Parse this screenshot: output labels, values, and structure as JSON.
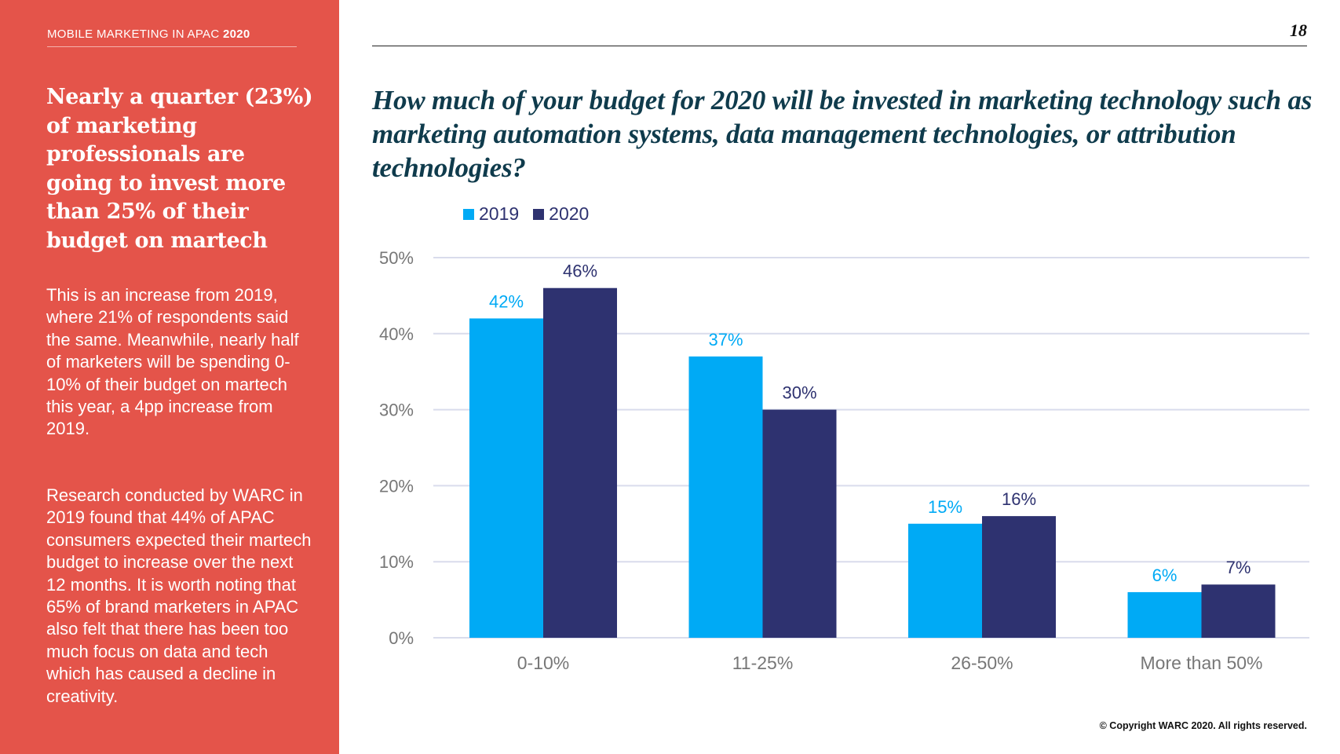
{
  "sidebar": {
    "report_label": "MOBILE MARKETING IN APAC",
    "report_year": "2020",
    "headline": "Nearly a quarter (23%) of marketing professionals are going to invest more than 25% of their budget on martech",
    "paragraph_1": "This is an increase from 2019, where 21% of respondents said the same. Meanwhile, nearly half of marketers will be spending 0-10% of their budget on martech this year, a 4pp increase from 2019.",
    "paragraph_2": "Research conducted by WARC in 2019 found that 44% of APAC consumers expected their martech budget to increase over the next 12 months. It is worth noting that 65% of brand marketers in APAC also felt that there has been too much focus on data and tech which has caused a decline in creativity."
  },
  "page_number": "18",
  "question": "How much of your budget for 2020 will be invested in marketing technology such as marketing automation systems, data management technologies, or attribution technologies?",
  "copyright": "© Copyright WARC 2020. All rights reserved.",
  "colors": {
    "sidebar_bg": "#e4544a",
    "series_2019": "#00aaf5",
    "series_2020": "#2e3270",
    "gridline": "#d9dcec"
  },
  "chart_data": {
    "type": "bar",
    "title": "",
    "xlabel": "",
    "ylabel": "",
    "categories": [
      "0-10%",
      "11-25%",
      "26-50%",
      "More than 50%"
    ],
    "series": [
      {
        "name": "2019",
        "color": "#00aaf5",
        "values": [
          42,
          37,
          15,
          6
        ],
        "labels": [
          "42%",
          "37%",
          "15%",
          "6%"
        ]
      },
      {
        "name": "2020",
        "color": "#2e3270",
        "values": [
          46,
          30,
          16,
          7
        ],
        "labels": [
          "46%",
          "30%",
          "16%",
          "7%"
        ]
      }
    ],
    "ylim": [
      0,
      50
    ],
    "yticks": [
      0,
      10,
      20,
      30,
      40,
      50
    ],
    "ytick_labels": [
      "0%",
      "10%",
      "20%",
      "30%",
      "40%",
      "50%"
    ],
    "grid": true,
    "legend": "top-left"
  }
}
